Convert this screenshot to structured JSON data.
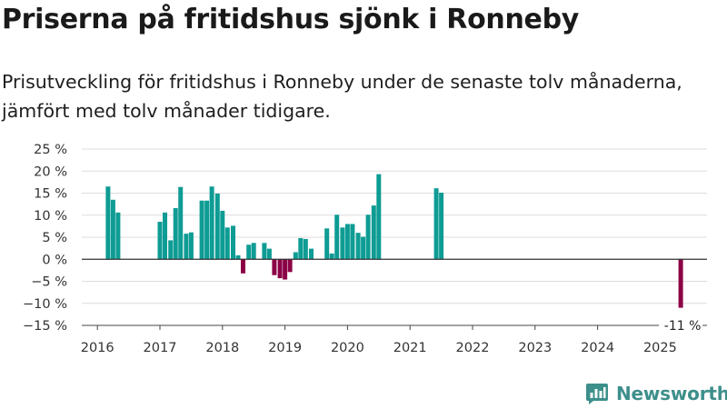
{
  "title": "Priserna på fritidshus sjönk i Ronneby",
  "subtitle": "Prisutveckling för fritidshus i Ronneby under de senaste tolv månaderna, jämfört med tolv månader tidigare.",
  "brand": {
    "name": "Newsworthy",
    "icon": "bar-chart-logo-icon"
  },
  "colors": {
    "positive": "#0e9c94",
    "negative": "#8c0046",
    "grid": "#dddddd",
    "zero": "#333333",
    "brand": "#3d8f8b"
  },
  "chart_data": {
    "type": "bar",
    "unit": "%",
    "ylim": [
      -15,
      25
    ],
    "yticks": [
      25,
      20,
      15,
      10,
      5,
      0,
      -5,
      -10,
      -15
    ],
    "ytick_labels": [
      "25 %",
      "20 %",
      "15 %",
      "10 %",
      "5 %",
      "0 %",
      "−5 %",
      "−10 %",
      "−15 %"
    ],
    "xlim": [
      2015.75,
      2025.75
    ],
    "xticks": [
      "2016",
      "2017",
      "2018",
      "2019",
      "2020",
      "2021",
      "2022",
      "2023",
      "2024",
      "2025"
    ],
    "grid": true,
    "annotation": "-11 %",
    "points": [
      {
        "x": 2016.17,
        "y": 16.5
      },
      {
        "x": 2016.25,
        "y": 13.5
      },
      {
        "x": 2016.33,
        "y": 10.6
      },
      {
        "x": 2017.0,
        "y": 8.5
      },
      {
        "x": 2017.08,
        "y": 10.6
      },
      {
        "x": 2017.17,
        "y": 4.3
      },
      {
        "x": 2017.25,
        "y": 11.6
      },
      {
        "x": 2017.33,
        "y": 16.4
      },
      {
        "x": 2017.42,
        "y": 5.8
      },
      {
        "x": 2017.5,
        "y": 6.1
      },
      {
        "x": 2017.67,
        "y": 13.3
      },
      {
        "x": 2017.75,
        "y": 13.3
      },
      {
        "x": 2017.83,
        "y": 16.5
      },
      {
        "x": 2017.92,
        "y": 14.9
      },
      {
        "x": 2018.0,
        "y": 11.0
      },
      {
        "x": 2018.08,
        "y": 7.2
      },
      {
        "x": 2018.17,
        "y": 7.6
      },
      {
        "x": 2018.25,
        "y": 0.9
      },
      {
        "x": 2018.33,
        "y": -3.2
      },
      {
        "x": 2018.42,
        "y": 3.3
      },
      {
        "x": 2018.5,
        "y": 3.7
      },
      {
        "x": 2018.67,
        "y": 3.7
      },
      {
        "x": 2018.75,
        "y": 2.4
      },
      {
        "x": 2018.83,
        "y": -3.6
      },
      {
        "x": 2018.92,
        "y": -4.3
      },
      {
        "x": 2019.0,
        "y": -4.6
      },
      {
        "x": 2019.08,
        "y": -2.9
      },
      {
        "x": 2019.17,
        "y": 1.6
      },
      {
        "x": 2019.25,
        "y": 4.8
      },
      {
        "x": 2019.33,
        "y": 4.6
      },
      {
        "x": 2019.42,
        "y": 2.4
      },
      {
        "x": 2019.67,
        "y": 7.0
      },
      {
        "x": 2019.75,
        "y": 1.3
      },
      {
        "x": 2019.83,
        "y": 10.1
      },
      {
        "x": 2019.92,
        "y": 7.2
      },
      {
        "x": 2020.0,
        "y": 8.0
      },
      {
        "x": 2020.08,
        "y": 8.0
      },
      {
        "x": 2020.17,
        "y": 6.0
      },
      {
        "x": 2020.25,
        "y": 5.1
      },
      {
        "x": 2020.33,
        "y": 10.1
      },
      {
        "x": 2020.42,
        "y": 12.2
      },
      {
        "x": 2020.5,
        "y": 19.3
      },
      {
        "x": 2021.42,
        "y": 16.1
      },
      {
        "x": 2021.5,
        "y": 15.1
      },
      {
        "x": 2025.33,
        "y": -11.0
      }
    ]
  }
}
